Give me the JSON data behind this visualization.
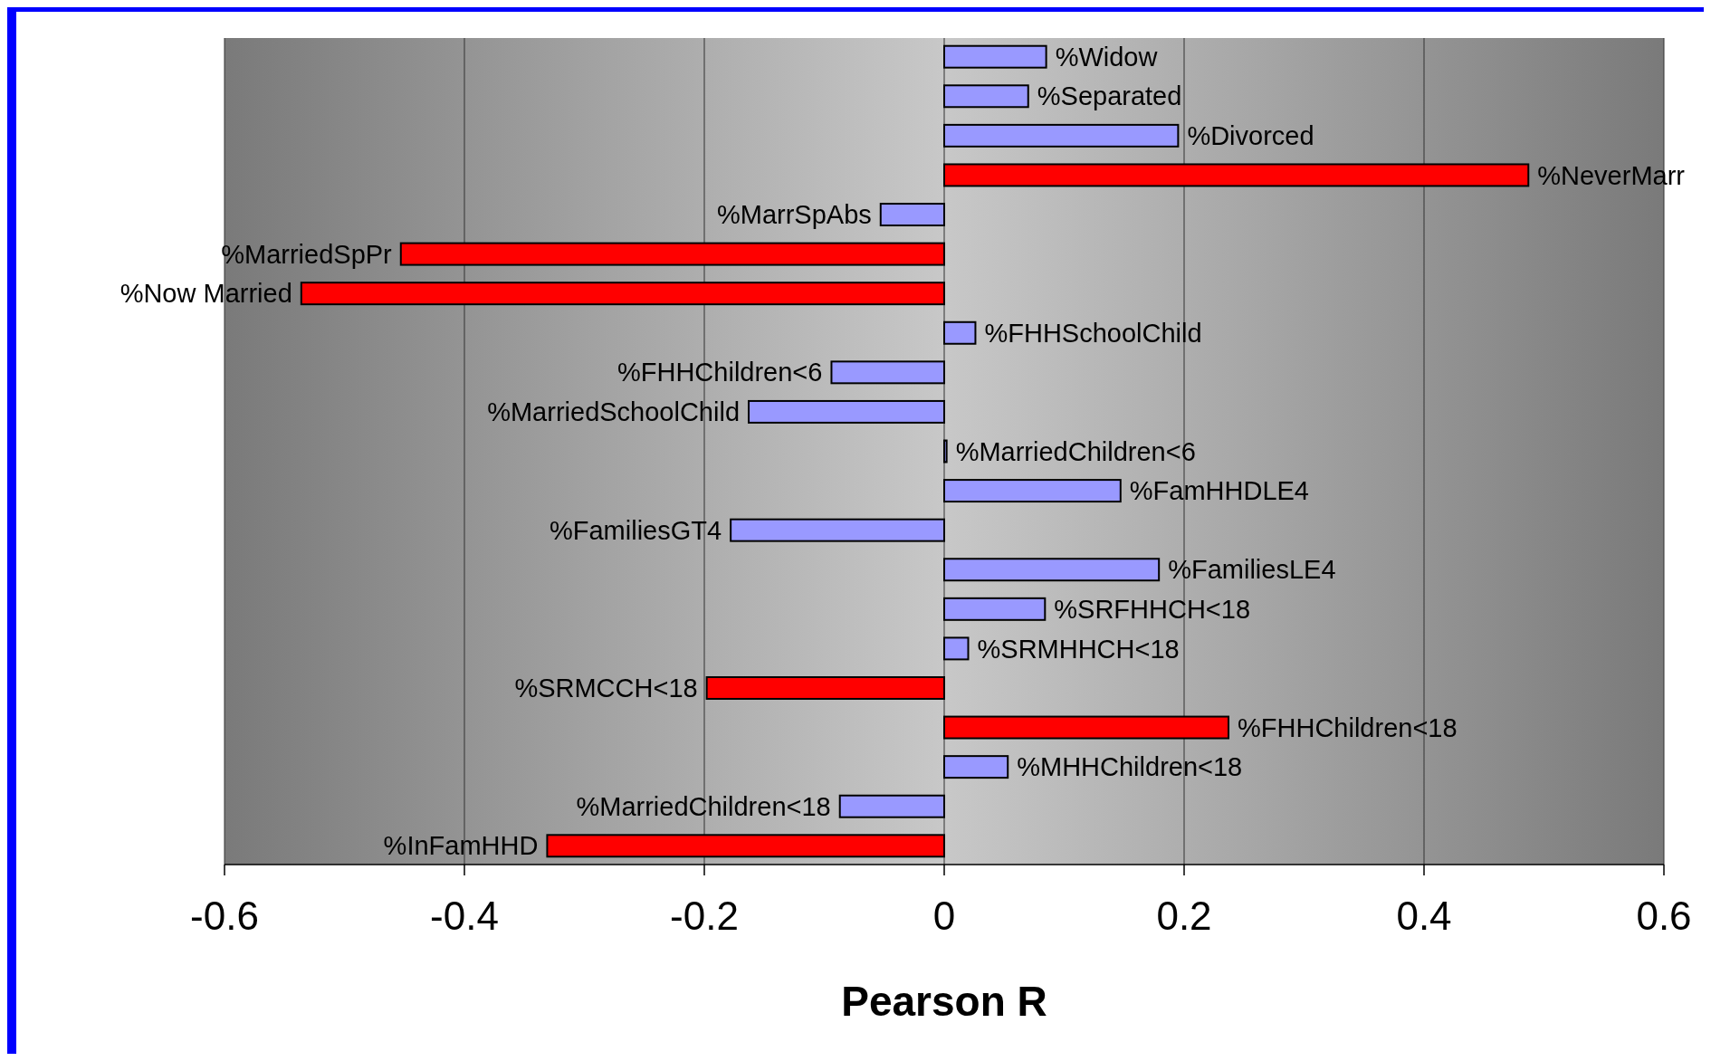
{
  "chart_data": {
    "type": "bar",
    "orientation": "horizontal",
    "xlabel": "Pearson R",
    "categories": [
      "%Widow",
      "%Separated",
      "%Divorced",
      "%NeverMarr",
      "%MarrSpAbs",
      "%MarriedSpPr",
      "%Now Married",
      "%FHHSchoolChild",
      "%FHHChildren<6",
      "%MarriedSchoolChild",
      "%MarriedChildren<6",
      "%FamHHDLE4",
      "%FamiliesGT4",
      "%FamiliesLE4",
      "%SRFHHCH<18",
      "%SRMHHCH<18",
      "%SRMCCH<18",
      "%FHHChildren<18",
      "%MHHChildren<18",
      "%MarriedChildren<18",
      "%InFamHHD"
    ],
    "values": [
      0.085,
      0.07,
      0.195,
      0.487,
      -0.053,
      -0.453,
      -0.536,
      0.026,
      -0.094,
      -0.163,
      0.002,
      0.147,
      -0.178,
      0.179,
      0.084,
      0.02,
      -0.198,
      0.237,
      0.053,
      -0.087,
      -0.331
    ],
    "colors": [
      "#9999ff",
      "#9999ff",
      "#9999ff",
      "#ff0000",
      "#9999ff",
      "#ff0000",
      "#ff0000",
      "#9999ff",
      "#9999ff",
      "#9999ff",
      "#9999ff",
      "#9999ff",
      "#9999ff",
      "#9999ff",
      "#9999ff",
      "#9999ff",
      "#ff0000",
      "#ff0000",
      "#9999ff",
      "#9999ff",
      "#ff0000"
    ],
    "xlim": [
      -0.6,
      0.6
    ],
    "xticks": [
      -0.6,
      -0.4,
      -0.2,
      0,
      0.2,
      0.4,
      0.6
    ],
    "grid": "x"
  }
}
